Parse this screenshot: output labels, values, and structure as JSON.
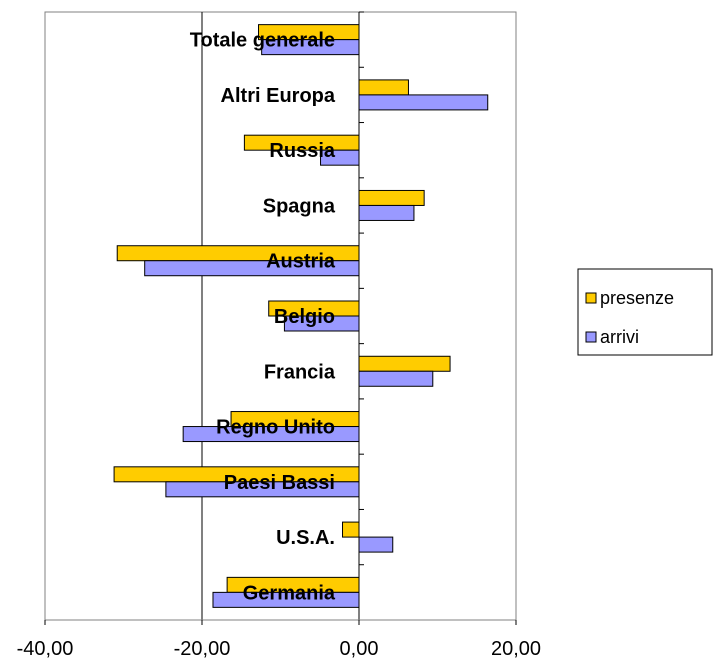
{
  "chart_data": {
    "type": "bar",
    "orientation": "horizontal",
    "categories": [
      "Germania",
      "U.S.A.",
      "Paesi Bassi",
      "Regno Unito",
      "Francia",
      "Belgio",
      "Austria",
      "Spagna",
      "Russia",
      "Altri Europa",
      "Totale generale"
    ],
    "series": [
      {
        "name": "presenze",
        "color": "#ffcc00",
        "values": [
          -16.8,
          -2.1,
          -31.2,
          -16.3,
          11.6,
          -11.5,
          -30.8,
          8.3,
          -14.6,
          6.3,
          -12.8
        ]
      },
      {
        "name": "arrivi",
        "color": "#9999ff",
        "values": [
          -18.6,
          4.3,
          -24.6,
          -22.4,
          9.4,
          -9.5,
          -27.3,
          7.0,
          -4.9,
          16.4,
          -12.4
        ]
      }
    ],
    "xlim": [
      -40,
      20
    ],
    "xticks": [
      -40,
      -20,
      0,
      20
    ],
    "xtick_labels": [
      "-40,00",
      "-20,00",
      "0,00",
      "20,00"
    ],
    "grid": "vertical gridline at -20",
    "legend_position": "right"
  }
}
